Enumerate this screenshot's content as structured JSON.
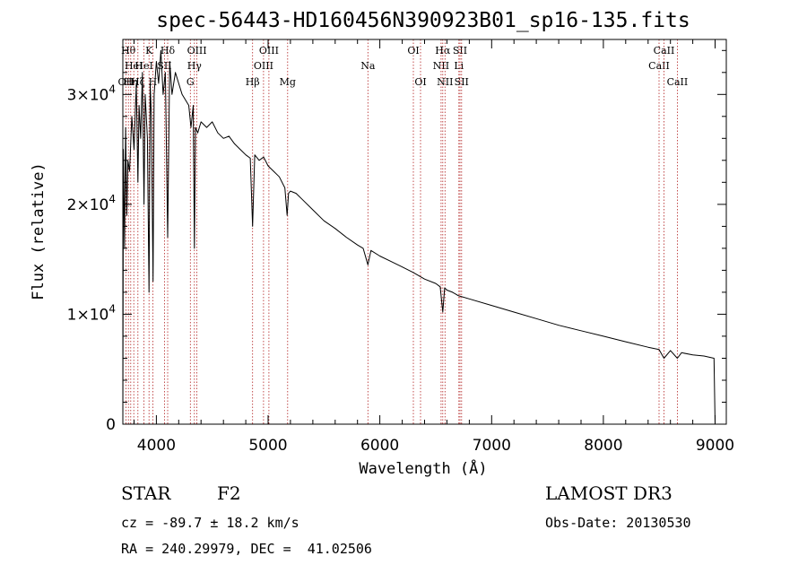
{
  "chart_data": {
    "type": "line",
    "title": "spec-56443-HD160456N390923B01_sp16-135.fits",
    "xlabel": "Wavelength (Å)",
    "ylabel": "Flux (relative)",
    "xlim": [
      3700,
      9100
    ],
    "ylim": [
      0,
      35000
    ],
    "x_ticks": [
      {
        "value": 4000,
        "label": "4000"
      },
      {
        "value": 5000,
        "label": "5000"
      },
      {
        "value": 6000,
        "label": "6000"
      },
      {
        "value": 7000,
        "label": "7000"
      },
      {
        "value": 8000,
        "label": "8000"
      },
      {
        "value": 9000,
        "label": "9000"
      }
    ],
    "y_ticks": [
      {
        "value": 0,
        "mantissa": "0",
        "exp": ""
      },
      {
        "value": 10000,
        "mantissa": "1×10",
        "exp": "4"
      },
      {
        "value": 20000,
        "mantissa": "2×10",
        "exp": "4"
      },
      {
        "value": 30000,
        "mantissa": "3×10",
        "exp": "4"
      }
    ],
    "series": [
      {
        "name": "spectrum",
        "x": [
          3700,
          3705,
          3715,
          3725,
          3735,
          3745,
          3760,
          3780,
          3800,
          3820,
          3835,
          3845,
          3860,
          3875,
          3889,
          3900,
          3920,
          3934,
          3945,
          3955,
          3970,
          3980,
          4000,
          4020,
          4040,
          4060,
          4080,
          4101,
          4120,
          4140,
          4170,
          4200,
          4230,
          4260,
          4290,
          4310,
          4330,
          4340,
          4350,
          4370,
          4400,
          4450,
          4500,
          4550,
          4600,
          4650,
          4700,
          4750,
          4800,
          4840,
          4861,
          4880,
          4920,
          4960,
          5000,
          5050,
          5100,
          5150,
          5170,
          5183,
          5200,
          5250,
          5300,
          5400,
          5500,
          5600,
          5700,
          5800,
          5850,
          5893,
          5920,
          6000,
          6100,
          6200,
          6300,
          6400,
          6500,
          6540,
          6563,
          6580,
          6600,
          6650,
          6700,
          6800,
          7000,
          7200,
          7400,
          7600,
          7800,
          8000,
          8200,
          8400,
          8498,
          8542,
          8600,
          8662,
          8700,
          8800,
          8900,
          8990,
          9000
        ],
        "values": [
          0,
          25000,
          16000,
          27000,
          19000,
          24000,
          23000,
          28000,
          25000,
          31000,
          22000,
          29000,
          26000,
          32000,
          20000,
          30000,
          26000,
          12000,
          31000,
          28000,
          13000,
          30000,
          33000,
          31000,
          34000,
          30000,
          32000,
          17000,
          33000,
          30000,
          32000,
          31000,
          30000,
          29500,
          29000,
          27000,
          29000,
          16000,
          27000,
          26500,
          27500,
          27000,
          27500,
          26500,
          26000,
          26200,
          25500,
          25000,
          24500,
          24200,
          18000,
          24500,
          24000,
          24300,
          23500,
          23000,
          22500,
          21500,
          19000,
          21000,
          21200,
          21000,
          20500,
          19500,
          18500,
          17800,
          17000,
          16300,
          16000,
          14500,
          15800,
          15300,
          14800,
          14300,
          13800,
          13200,
          12800,
          12500,
          10200,
          12400,
          12200,
          12000,
          11700,
          11400,
          10800,
          10200,
          9600,
          9000,
          8500,
          8000,
          7500,
          7000,
          6800,
          6000,
          6700,
          6000,
          6500,
          6300,
          6200,
          6000,
          0
        ]
      }
    ],
    "lines": [
      {
        "wl": 3727,
        "label": "OII",
        "row": 3
      },
      {
        "wl": 3750,
        "label": "Hθ",
        "row": 1
      },
      {
        "wl": 3771,
        "label": "Hη",
        "row": 3
      },
      {
        "wl": 3798,
        "label": "HeI",
        "row": 2
      },
      {
        "wl": 3835,
        "label": "Hζ",
        "row": 3
      },
      {
        "wl": 3889,
        "label": "HeI",
        "row": 2
      },
      {
        "wl": 3934,
        "label": "K",
        "row": 1
      },
      {
        "wl": 3968,
        "label": "H",
        "row": 3
      },
      {
        "wl": 4072,
        "label": "SII",
        "row": 2
      },
      {
        "wl": 4101,
        "label": "Hδ",
        "row": 1
      },
      {
        "wl": 4304,
        "label": "G",
        "row": 3
      },
      {
        "wl": 4340,
        "label": "Hγ",
        "row": 2
      },
      {
        "wl": 4363,
        "label": "OIII",
        "row": 1
      },
      {
        "wl": 4861,
        "label": "Hβ",
        "row": 3
      },
      {
        "wl": 4959,
        "label": "OIII",
        "row": 2
      },
      {
        "wl": 5007,
        "label": "OIII",
        "row": 1
      },
      {
        "wl": 5175,
        "label": "Mg",
        "row": 3
      },
      {
        "wl": 5893,
        "label": "Na",
        "row": 2
      },
      {
        "wl": 6300,
        "label": "OI",
        "row": 1
      },
      {
        "wl": 6364,
        "label": "OI",
        "row": 3
      },
      {
        "wl": 6548,
        "label": "NII",
        "row": 2
      },
      {
        "wl": 6563,
        "label": "Hα",
        "row": 1
      },
      {
        "wl": 6583,
        "label": "NII",
        "row": 3
      },
      {
        "wl": 6707,
        "label": "Li",
        "row": 2
      },
      {
        "wl": 6717,
        "label": "SII",
        "row": 1
      },
      {
        "wl": 6731,
        "label": "SII",
        "row": 3
      },
      {
        "wl": 8498,
        "label": "CaII",
        "row": 2
      },
      {
        "wl": 8542,
        "label": "CaII",
        "row": 1
      },
      {
        "wl": 8662,
        "label": "CaII",
        "row": 3
      }
    ]
  },
  "info": {
    "class": "STAR",
    "subclass": "F2",
    "survey": "LAMOST DR3",
    "cz": "cz = -89.7 ± 18.2 km/s",
    "obs_date": "Obs-Date: 20130530",
    "coords": "RA = 240.29979, DEC =  41.02506"
  },
  "colors": {
    "line_marker": "#b22222",
    "spectrum": "#000000"
  }
}
